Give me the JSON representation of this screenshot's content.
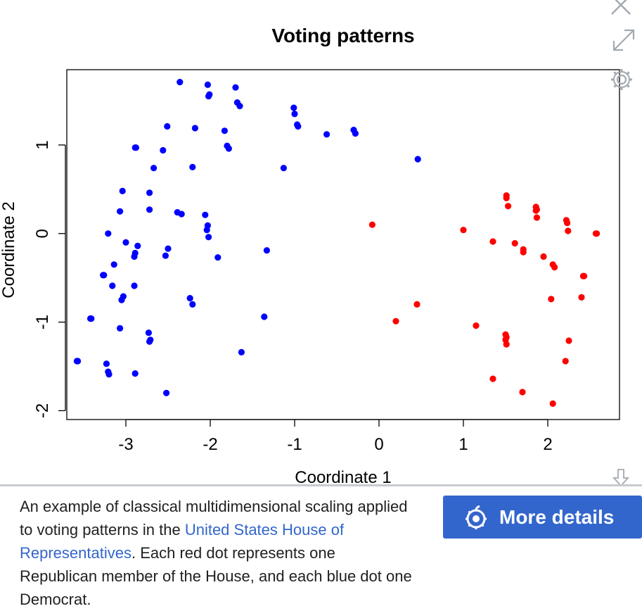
{
  "toolbar": {
    "close_icon": "close-icon",
    "expand_icon": "expand-icon",
    "settings_icon": "gear-icon",
    "download_icon": "download-arrow-icon"
  },
  "chart_data": {
    "type": "scatter",
    "title": "Voting patterns",
    "xlabel": "Coordinate 1",
    "ylabel": "Coordinate 2",
    "xlim": [
      -3.7,
      2.85
    ],
    "ylim": [
      -2.1,
      1.85
    ],
    "xticks": [
      -3,
      -2,
      -1,
      0,
      1,
      2
    ],
    "yticks": [
      -2,
      -1,
      0,
      1
    ],
    "grid": false,
    "legend": "none",
    "series": [
      {
        "color": "#0000ff",
        "points": [
          [
            -2.36,
            1.71
          ],
          [
            -2.03,
            1.68
          ],
          [
            -1.7,
            1.65
          ],
          [
            -2.01,
            1.57
          ],
          [
            -2.02,
            1.55
          ],
          [
            -1.68,
            1.48
          ],
          [
            -1.65,
            1.44
          ],
          [
            -1.01,
            1.42
          ],
          [
            -1.0,
            1.35
          ],
          [
            -0.97,
            1.23
          ],
          [
            -0.96,
            1.21
          ],
          [
            -2.51,
            1.21
          ],
          [
            -2.18,
            1.19
          ],
          [
            -1.83,
            1.16
          ],
          [
            -0.62,
            1.12
          ],
          [
            -0.3,
            1.17
          ],
          [
            -0.28,
            1.13
          ],
          [
            -1.8,
            0.99
          ],
          [
            -1.78,
            0.96
          ],
          [
            -2.89,
            0.97
          ],
          [
            -2.88,
            0.97
          ],
          [
            -2.56,
            0.94
          ],
          [
            -2.67,
            0.74
          ],
          [
            -2.21,
            0.75
          ],
          [
            -1.13,
            0.74
          ],
          [
            0.46,
            0.84
          ],
          [
            -3.04,
            0.48
          ],
          [
            -2.72,
            0.46
          ],
          [
            -3.07,
            0.25
          ],
          [
            -2.72,
            0.27
          ],
          [
            -2.39,
            0.24
          ],
          [
            -2.34,
            0.22
          ],
          [
            -2.06,
            0.21
          ],
          [
            -2.03,
            0.09
          ],
          [
            -2.04,
            0.04
          ],
          [
            -3.21,
            0.0
          ],
          [
            -2.02,
            -0.04
          ],
          [
            -3.0,
            -0.1
          ],
          [
            -2.86,
            -0.14
          ],
          [
            -2.5,
            -0.17
          ],
          [
            -2.89,
            -0.22
          ],
          [
            -2.9,
            -0.26
          ],
          [
            -2.53,
            -0.25
          ],
          [
            -1.91,
            -0.27
          ],
          [
            -1.33,
            -0.19
          ],
          [
            -3.14,
            -0.35
          ],
          [
            -3.26,
            -0.47
          ],
          [
            -3.27,
            -0.47
          ],
          [
            -3.16,
            -0.59
          ],
          [
            -2.9,
            -0.59
          ],
          [
            -3.03,
            -0.71
          ],
          [
            -3.05,
            -0.75
          ],
          [
            -2.24,
            -0.73
          ],
          [
            -2.21,
            -0.8
          ],
          [
            -1.36,
            -0.94
          ],
          [
            -3.42,
            -0.96
          ],
          [
            -3.41,
            -0.96
          ],
          [
            -3.07,
            -1.07
          ],
          [
            -2.73,
            -1.12
          ],
          [
            -2.71,
            -1.2
          ],
          [
            -2.72,
            -1.22
          ],
          [
            -1.63,
            -1.34
          ],
          [
            -3.58,
            -1.44
          ],
          [
            -3.57,
            -1.44
          ],
          [
            -3.23,
            -1.47
          ],
          [
            -3.21,
            -1.56
          ],
          [
            -3.2,
            -1.59
          ],
          [
            -2.89,
            -1.58
          ],
          [
            -2.52,
            -1.8
          ]
        ]
      },
      {
        "color": "#ff0000",
        "points": [
          [
            -0.08,
            0.1
          ],
          [
            1.51,
            0.43
          ],
          [
            1.51,
            0.4
          ],
          [
            1.53,
            0.31
          ],
          [
            1.86,
            0.3
          ],
          [
            1.87,
            0.27
          ],
          [
            1.86,
            0.26
          ],
          [
            1.87,
            0.18
          ],
          [
            2.22,
            0.15
          ],
          [
            2.23,
            0.12
          ],
          [
            2.24,
            0.03
          ],
          [
            2.57,
            0.0
          ],
          [
            2.58,
            0.0
          ],
          [
            1.0,
            0.04
          ],
          [
            1.35,
            -0.09
          ],
          [
            1.61,
            -0.11
          ],
          [
            1.71,
            -0.18
          ],
          [
            1.71,
            -0.21
          ],
          [
            1.95,
            -0.26
          ],
          [
            2.06,
            -0.35
          ],
          [
            2.08,
            -0.38
          ],
          [
            2.42,
            -0.48
          ],
          [
            2.43,
            -0.48
          ],
          [
            2.4,
            -0.72
          ],
          [
            2.04,
            -0.74
          ],
          [
            0.45,
            -0.8
          ],
          [
            0.2,
            -0.99
          ],
          [
            1.15,
            -1.04
          ],
          [
            1.5,
            -1.14
          ],
          [
            1.51,
            -1.17
          ],
          [
            1.5,
            -1.2
          ],
          [
            1.51,
            -1.25
          ],
          [
            2.25,
            -1.21
          ],
          [
            2.21,
            -1.44
          ],
          [
            1.35,
            -1.64
          ],
          [
            1.7,
            -1.79
          ],
          [
            2.06,
            -1.92
          ]
        ]
      }
    ]
  },
  "caption": {
    "text_before": "An example of classical multidimensional scaling applied to voting patterns in the ",
    "link_text": "United States House of Representatives",
    "text_after": ". Each red dot represents one Republican member of the House, and each blue dot one Democrat."
  },
  "details_button": {
    "label": "More details",
    "icon": "commons-icon",
    "color": "#3366cc"
  }
}
